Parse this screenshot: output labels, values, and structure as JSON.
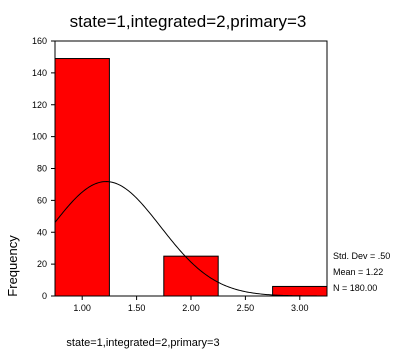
{
  "chart_data": {
    "type": "bar",
    "subtype": "histogram",
    "title": "state=1,integrated=2,primary=3",
    "xlabel": "state=1,integrated=2,primary=3",
    "ylabel": "Frequency",
    "xlim": [
      0.75,
      3.25
    ],
    "ylim": [
      0,
      160
    ],
    "yticks": [
      0,
      20,
      40,
      60,
      80,
      100,
      120,
      140,
      160
    ],
    "xticks": [
      1.0,
      1.5,
      2.0,
      2.5,
      3.0
    ],
    "xtick_labels": [
      "1.00",
      "1.50",
      "2.00",
      "2.50",
      "3.00"
    ],
    "bins": [
      {
        "x0": 0.75,
        "x1": 1.25,
        "value": 149
      },
      {
        "x0": 1.75,
        "x1": 2.25,
        "value": 25
      },
      {
        "x0": 2.75,
        "x1": 3.25,
        "value": 6
      }
    ],
    "bar_color": "#ff0000",
    "normal_curve": {
      "mean": 1.22,
      "sd": 0.5,
      "n": 180,
      "bin_width": 0.5
    },
    "stats": [
      "Std. Dev = .50",
      "Mean = 1.22",
      "N = 180.00"
    ],
    "grid": false
  }
}
